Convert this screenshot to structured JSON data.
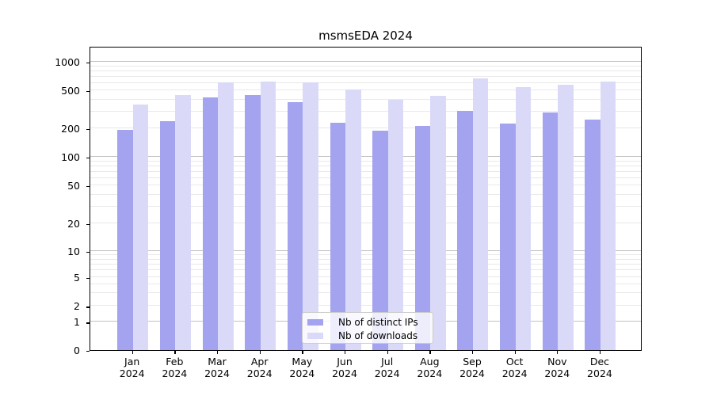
{
  "title": "msmsEDA 2024",
  "chart_data": {
    "type": "bar",
    "title": "msmsEDA 2024",
    "categories": [
      "Jan",
      "Feb",
      "Mar",
      "Apr",
      "May",
      "Jun",
      "Jul",
      "Aug",
      "Sep",
      "Oct",
      "Nov",
      "Dec"
    ],
    "x_year_line": "2024",
    "series": [
      {
        "name": "Nb of distinct IPs",
        "color": "#a3a3ef",
        "values": [
          193,
          237,
          420,
          445,
          376,
          230,
          190,
          213,
          305,
          226,
          296,
          248
        ]
      },
      {
        "name": "Nb of downloads",
        "color": "#dadaf8",
        "values": [
          355,
          450,
          605,
          615,
          613,
          510,
          400,
          444,
          665,
          545,
          573,
          620
        ]
      }
    ],
    "yticks": [
      0,
      1,
      2,
      5,
      10,
      20,
      50,
      100,
      200,
      500,
      1000
    ],
    "ylim": [
      0,
      1370
    ],
    "yscale": "log-like (symlog)",
    "grid": true,
    "legend_position": "lower center"
  },
  "colors": {
    "bar_distinct_ips": "#a3a3ef",
    "bar_downloads": "#dadaf8",
    "grid_major": "#c2c2c2",
    "grid_minor": "#e9e9e9",
    "spine": "#000000",
    "legend_border": "#cccccc"
  }
}
